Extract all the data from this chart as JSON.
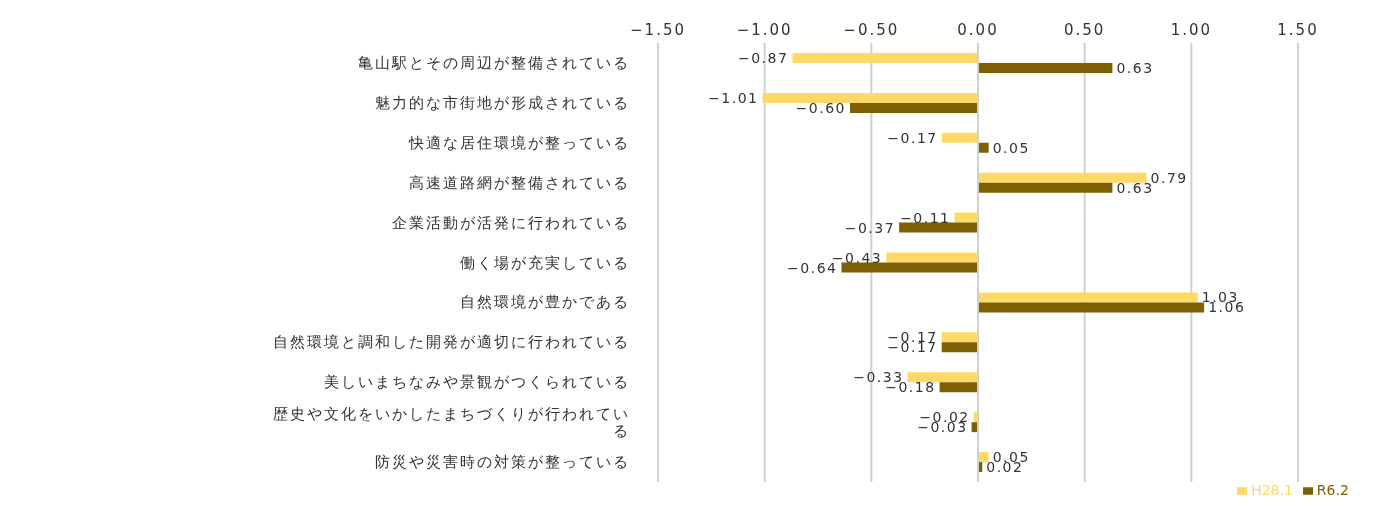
{
  "chart_data": {
    "type": "bar",
    "orientation": "horizontal",
    "categories": [
      "亀山駅とその周辺が整備されている",
      "魅力的な市街地が形成されている",
      "快適な居住環境が整っている",
      "高速道路網が整備されている",
      "企業活動が活発に行われている",
      "働く場が充実している",
      "自然環境が豊かである",
      "自然環境と調和した開発が適切に行われている",
      "美しいまちなみや景観がつくられている",
      "歴史や文化をいかしたまちづくりが行われている",
      "防災や災害時の対策が整っている"
    ],
    "series": [
      {
        "name": "H28.1",
        "color": "#ffd966",
        "values": [
          -0.87,
          -1.01,
          -0.17,
          0.79,
          -0.11,
          -0.43,
          1.03,
          -0.17,
          -0.33,
          -0.02,
          0.05
        ],
        "value_labels": [
          "−0.87",
          "−1.01",
          "−0.17",
          "0.79",
          "−0.11",
          "−0.43",
          "1.03",
          "−0.17",
          "−0.33",
          "−0.02",
          "0.05"
        ]
      },
      {
        "name": "R6.2",
        "color": "#7f6000",
        "values": [
          0.63,
          -0.6,
          0.05,
          0.63,
          -0.37,
          -0.64,
          1.06,
          -0.17,
          -0.18,
          -0.03,
          0.02
        ],
        "value_labels": [
          "0.63",
          "−0.60",
          "0.05",
          "0.63",
          "−0.37",
          "−0.64",
          "1.06",
          "−0.17",
          "−0.18",
          "−0.03",
          "0.02"
        ]
      }
    ],
    "xlim": [
      -1.5,
      1.5
    ],
    "xticks": [
      {
        "value": -1.5,
        "label": "−1.50"
      },
      {
        "value": -1,
        "label": "−1.00"
      },
      {
        "value": -0.5,
        "label": "−0.50"
      },
      {
        "value": 0,
        "label": "0.00"
      },
      {
        "value": 0.5,
        "label": "0.50"
      },
      {
        "value": 1,
        "label": "1.00"
      },
      {
        "value": 1.5,
        "label": "1.50"
      }
    ],
    "grid": "x",
    "legend": "bottom"
  }
}
